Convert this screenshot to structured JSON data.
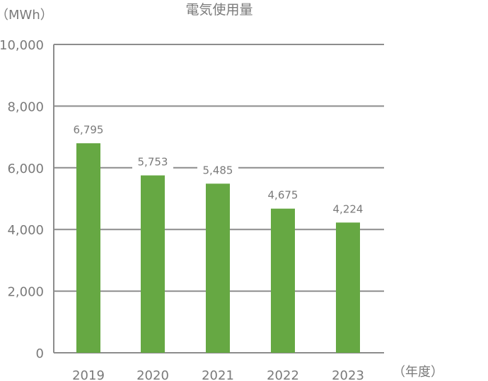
{
  "chart_data": {
    "type": "bar",
    "title": "電気使用量",
    "ylabel": "（MWh）",
    "xlabel": "（年度）",
    "categories": [
      "2019",
      "2020",
      "2021",
      "2022",
      "2023"
    ],
    "values": [
      6795,
      5753,
      5485,
      4675,
      4224
    ],
    "value_labels": [
      "6,795",
      "5,753",
      "5,485",
      "4,675",
      "4,224"
    ],
    "ylim": [
      0,
      10000
    ],
    "yticks": [
      0,
      2000,
      4000,
      6000,
      8000,
      10000
    ],
    "ytick_labels": [
      "0",
      "2,000",
      "4,000",
      "6,000",
      "8,000",
      "10,000"
    ],
    "grid": true,
    "colors": {
      "bar": "#66a843",
      "grid": "#8c8c8c",
      "text": "#7a7a7a"
    }
  }
}
